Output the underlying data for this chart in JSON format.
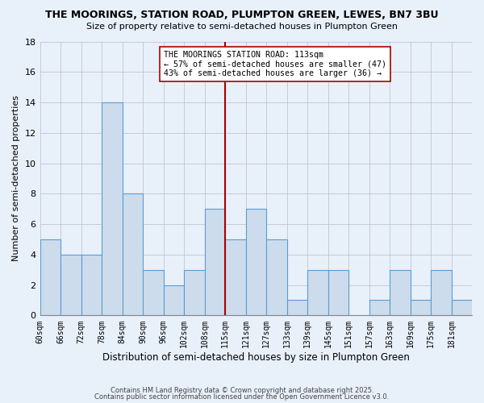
{
  "title": "THE MOORINGS, STATION ROAD, PLUMPTON GREEN, LEWES, BN7 3BU",
  "subtitle": "Size of property relative to semi-detached houses in Plumpton Green",
  "xlabel": "Distribution of semi-detached houses by size in Plumpton Green",
  "ylabel": "Number of semi-detached properties",
  "bins": [
    60,
    66,
    72,
    78,
    84,
    90,
    96,
    102,
    108,
    114,
    120,
    126,
    132,
    138,
    144,
    150,
    156,
    162,
    168,
    174,
    180,
    186
  ],
  "bin_labels": [
    "60sqm",
    "66sqm",
    "72sqm",
    "78sqm",
    "84sqm",
    "90sqm",
    "96sqm",
    "102sqm",
    "108sqm",
    "115sqm",
    "121sqm",
    "127sqm",
    "133sqm",
    "139sqm",
    "145sqm",
    "151sqm",
    "157sqm",
    "163sqm",
    "169sqm",
    "175sqm",
    "181sqm"
  ],
  "counts": [
    5,
    4,
    4,
    14,
    8,
    3,
    2,
    3,
    7,
    5,
    7,
    5,
    1,
    3,
    3,
    0,
    1,
    3,
    1,
    3,
    1
  ],
  "bar_color": "#ccdcec",
  "bar_edge_color": "#5b9bd5",
  "background_color": "#e8f0fa",
  "grid_color": "#bbbbcc",
  "vline_x": 114,
  "vline_color": "#aa0000",
  "annotation_title": "THE MOORINGS STATION ROAD: 113sqm",
  "annotation_line1": "← 57% of semi-detached houses are smaller (47)",
  "annotation_line2": "43% of semi-detached houses are larger (36) →",
  "annotation_box_edge": "#aa0000",
  "ylim": [
    0,
    18
  ],
  "yticks": [
    0,
    2,
    4,
    6,
    8,
    10,
    12,
    14,
    16,
    18
  ],
  "footer1": "Contains HM Land Registry data © Crown copyright and database right 2025.",
  "footer2": "Contains public sector information licensed under the Open Government Licence v3.0."
}
